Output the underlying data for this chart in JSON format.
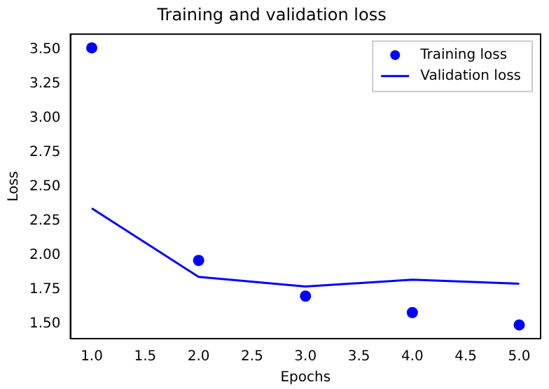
{
  "chart_data": {
    "type": "line",
    "title": "Training and validation loss",
    "xlabel": "Epochs",
    "ylabel": "Loss",
    "x": [
      1,
      2,
      3,
      4,
      5
    ],
    "series": [
      {
        "name": "Training loss",
        "type": "scatter",
        "color": "#0000ff",
        "marker": "circle",
        "values": [
          3.51,
          1.96,
          1.7,
          1.58,
          1.49
        ]
      },
      {
        "name": "Validation loss",
        "color": "#0000ff",
        "marker": "none",
        "values": [
          2.34,
          1.84,
          1.77,
          1.82,
          1.79
        ]
      }
    ],
    "xlim": [
      0.8,
      5.2
    ],
    "xticks": [
      {
        "value": 1,
        "label": "1.0"
      },
      {
        "value": 1.5,
        "label": "1.5"
      },
      {
        "value": 2,
        "label": "2.0"
      },
      {
        "value": 2.5,
        "label": "2.5"
      },
      {
        "value": 3,
        "label": "3.0"
      },
      {
        "value": 3.5,
        "label": "3.5"
      },
      {
        "value": 4,
        "label": "4.0"
      },
      {
        "value": 4.5,
        "label": "4.5"
      },
      {
        "value": 5,
        "label": "5.0"
      }
    ],
    "ylim": [
      1.39,
      3.61
    ],
    "yticks": [
      {
        "value": 1.5,
        "label": "1.50"
      },
      {
        "value": 1.75,
        "label": "1.75"
      },
      {
        "value": 2,
        "label": "2.00"
      },
      {
        "value": 2.25,
        "label": "2.25"
      },
      {
        "value": 2.5,
        "label": "2.50"
      },
      {
        "value": 2.75,
        "label": "2.75"
      },
      {
        "value": 3,
        "label": "3.00"
      },
      {
        "value": 3.25,
        "label": "3.25"
      },
      {
        "value": 3.5,
        "label": "3.50"
      }
    ],
    "legend": "top right",
    "grid": false
  }
}
